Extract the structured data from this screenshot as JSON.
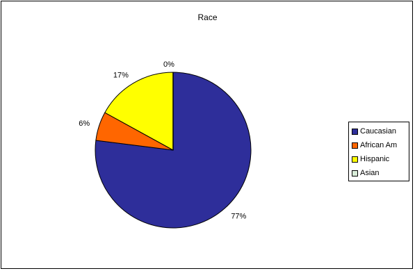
{
  "chart_data": {
    "type": "pie",
    "title": "Race",
    "categories": [
      "Caucasian",
      "African Am",
      "Hispanic",
      "Asian"
    ],
    "values": [
      77,
      6,
      17,
      0
    ],
    "labels": [
      "77%",
      "6%",
      "17%",
      "0%"
    ],
    "colors": [
      "#2e2e9a",
      "#ff6600",
      "#ffff00",
      "#d8ecd8"
    ],
    "legend_position": "right"
  }
}
